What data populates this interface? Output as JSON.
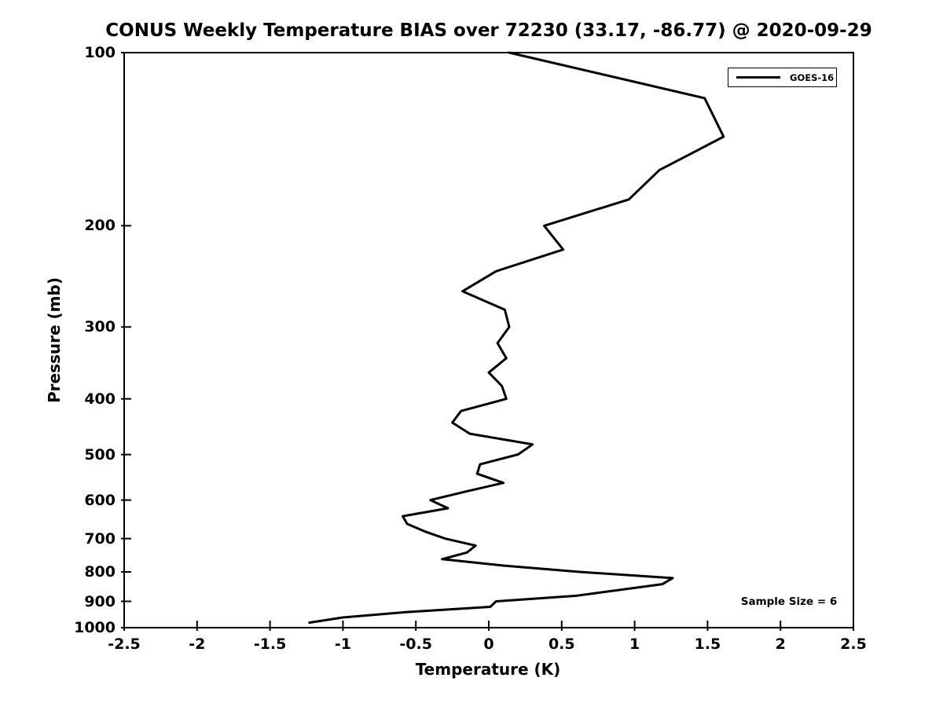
{
  "chart_data": {
    "type": "line",
    "title": "CONUS Weekly Temperature BIAS over 72230 (33.17, -86.77) @ 2020-09-29",
    "xlabel": "Temperature (K)",
    "ylabel": "Pressure (mb)",
    "xlim": [
      -2.5,
      2.5
    ],
    "ylim": [
      100,
      1000
    ],
    "y_scale": "log",
    "y_inverted": true,
    "grid": false,
    "x_ticks": [
      -2.5,
      -2,
      -1.5,
      -1,
      -0.5,
      0,
      0.5,
      1,
      1.5,
      2,
      2.5
    ],
    "y_ticks": [
      100,
      200,
      300,
      400,
      500,
      600,
      700,
      800,
      900,
      1000
    ],
    "legend": {
      "position": "top-right",
      "entries": [
        {
          "label": "GOES-16",
          "color": "#000000"
        }
      ]
    },
    "annotation": "Sample Size = 6",
    "series": [
      {
        "name": "GOES-16",
        "color": "#000000",
        "line_width": 3,
        "pressure_mb": [
          100,
          120,
          140,
          160,
          180,
          200,
          220,
          240,
          260,
          280,
          300,
          320,
          340,
          360,
          380,
          400,
          420,
          440,
          460,
          480,
          500,
          520,
          540,
          560,
          580,
          600,
          620,
          640,
          660,
          680,
          700,
          720,
          740,
          760,
          780,
          800,
          820,
          840,
          860,
          880,
          900,
          920,
          940,
          960,
          980
        ],
        "bias_k": [
          0.14,
          1.48,
          1.61,
          1.17,
          0.96,
          0.38,
          0.51,
          0.05,
          -0.18,
          0.11,
          0.14,
          0.06,
          0.12,
          0.0,
          0.09,
          0.12,
          -0.19,
          -0.25,
          -0.13,
          0.3,
          0.2,
          -0.06,
          -0.08,
          0.1,
          -0.16,
          -0.4,
          -0.28,
          -0.59,
          -0.56,
          -0.44,
          -0.3,
          -0.09,
          -0.15,
          -0.32,
          0.1,
          0.63,
          1.26,
          1.19,
          0.89,
          0.6,
          0.05,
          0.01,
          -0.57,
          -1.0,
          -1.23
        ]
      }
    ]
  }
}
